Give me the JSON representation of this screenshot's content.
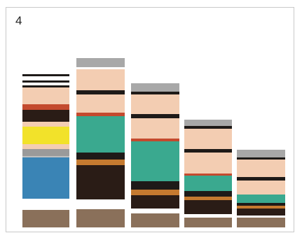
{
  "panel": {
    "label": "4"
  },
  "columns": [
    {
      "name": "column-1",
      "bands": [
        {
          "color": "#ffffff",
          "h": 3
        },
        {
          "color": "#1e1a18",
          "h": 3
        },
        {
          "color": "#ffffff",
          "h": 6
        },
        {
          "color": "#1e1a18",
          "h": 3
        },
        {
          "color": "#ffffff",
          "h": 4
        },
        {
          "color": "#1e1a18",
          "h": 3
        },
        {
          "color": "#f3cdb2",
          "h": 24
        },
        {
          "color": "#c44a2e",
          "h": 8
        },
        {
          "color": "#2a1c16",
          "h": 17
        },
        {
          "color": "#f3cdb2",
          "h": 7
        },
        {
          "color": "#f2e22a",
          "h": 25
        },
        {
          "color": "#f3cdb2",
          "h": 7
        },
        {
          "color": "#9a9a9a",
          "h": 10
        },
        {
          "color": "#bfbfbf",
          "h": 2
        },
        {
          "color": "#3a84b5",
          "h": 59
        },
        {
          "color": "#ffffff",
          "h": 16
        },
        {
          "color": "#8a705a",
          "h": 25
        }
      ]
    },
    {
      "name": "column-2",
      "bands": [
        {
          "color": "#a8a8a8",
          "h": 13
        },
        {
          "color": "#ffffff",
          "h": 3
        },
        {
          "color": "#f3cdb2",
          "h": 30
        },
        {
          "color": "#1e1a18",
          "h": 6
        },
        {
          "color": "#f3cdb2",
          "h": 26
        },
        {
          "color": "#c44a2e",
          "h": 5
        },
        {
          "color": "#3aa98f",
          "h": 52
        },
        {
          "color": "#1e1a18",
          "h": 10
        },
        {
          "color": "#c57a30",
          "h": 8
        },
        {
          "color": "#2a1c16",
          "h": 49
        },
        {
          "color": "#ffffff",
          "h": 14
        },
        {
          "color": "#8a705a",
          "h": 26
        }
      ]
    },
    {
      "name": "column-3",
      "bands": [
        {
          "color": "#a8a8a8",
          "h": 12
        },
        {
          "color": "#1e1a18",
          "h": 4
        },
        {
          "color": "#f3cdb2",
          "h": 28
        },
        {
          "color": "#1e1a18",
          "h": 6
        },
        {
          "color": "#f3cdb2",
          "h": 29
        },
        {
          "color": "#c44a2e",
          "h": 4
        },
        {
          "color": "#3aa98f",
          "h": 57
        },
        {
          "color": "#1e1a18",
          "h": 12
        },
        {
          "color": "#c57a30",
          "h": 8
        },
        {
          "color": "#2a1c16",
          "h": 19
        },
        {
          "color": "#ffffff",
          "h": 7
        },
        {
          "color": "#8a705a",
          "h": 20
        }
      ]
    },
    {
      "name": "column-4",
      "bands": [
        {
          "color": "#a8a8a8",
          "h": 9
        },
        {
          "color": "#1e1a18",
          "h": 4
        },
        {
          "color": "#f3cdb2",
          "h": 29
        },
        {
          "color": "#1e1a18",
          "h": 5
        },
        {
          "color": "#f3cdb2",
          "h": 30
        },
        {
          "color": "#c44a2e",
          "h": 3
        },
        {
          "color": "#3aa98f",
          "h": 22
        },
        {
          "color": "#1e1a18",
          "h": 8
        },
        {
          "color": "#c57a30",
          "h": 5
        },
        {
          "color": "#2a1c16",
          "h": 20
        },
        {
          "color": "#ffffff",
          "h": 5
        },
        {
          "color": "#8a705a",
          "h": 14
        }
      ]
    },
    {
      "name": "column-5",
      "bands": [
        {
          "color": "#a8a8a8",
          "h": 11
        },
        {
          "color": "#1e1a18",
          "h": 3
        },
        {
          "color": "#f3cdb2",
          "h": 25
        },
        {
          "color": "#1e1a18",
          "h": 5
        },
        {
          "color": "#f3cdb2",
          "h": 20
        },
        {
          "color": "#3aa98f",
          "h": 12
        },
        {
          "color": "#1e1a18",
          "h": 4
        },
        {
          "color": "#c57a30",
          "h": 4
        },
        {
          "color": "#2a1c16",
          "h": 10
        },
        {
          "color": "#ffffff",
          "h": 3
        },
        {
          "color": "#8a705a",
          "h": 14
        }
      ]
    }
  ]
}
